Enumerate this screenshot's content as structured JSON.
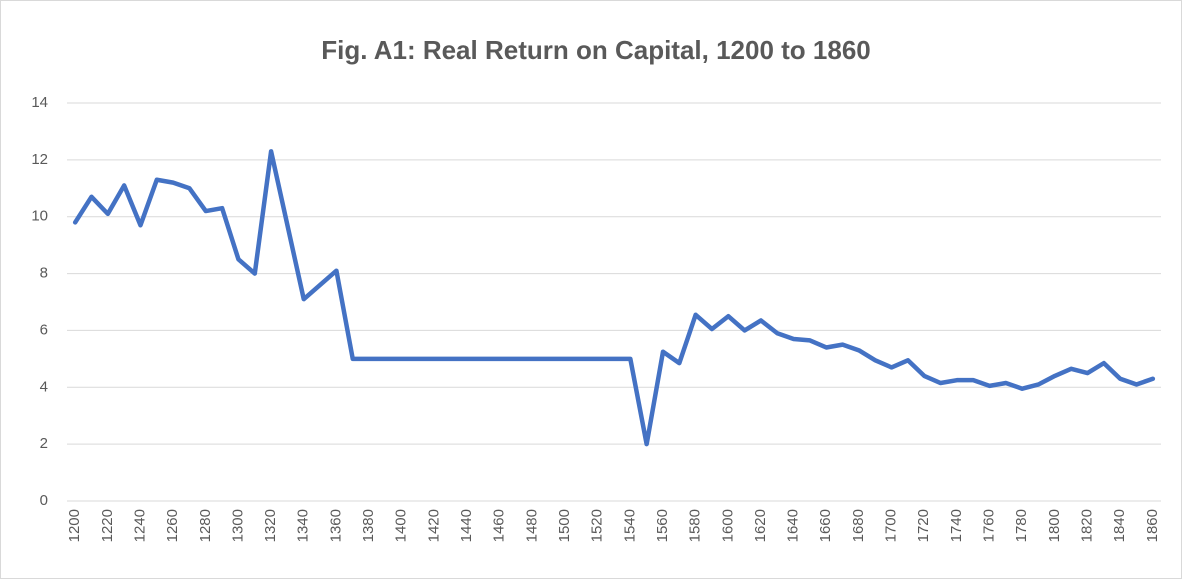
{
  "chart_data": {
    "type": "line",
    "title": "Fig. A1: Real Return on Capital, 1200 to 1860",
    "categories": [
      "1200",
      null,
      "1220",
      null,
      "1240",
      null,
      "1260",
      null,
      "1280",
      null,
      "1300",
      null,
      "1320",
      null,
      "1340",
      null,
      "1360",
      null,
      "1380",
      null,
      "1400",
      null,
      "1420",
      null,
      "1440",
      null,
      "1460",
      null,
      "1480",
      null,
      "1500",
      null,
      "1520",
      null,
      "1540",
      null,
      "1560",
      null,
      "1580",
      null,
      "1600",
      null,
      "1620",
      null,
      "1640",
      null,
      "1660",
      null,
      "1680",
      null,
      "1700",
      null,
      "1720",
      null,
      "1740",
      null,
      "1760",
      null,
      "1780",
      null,
      "1800",
      null,
      "1820",
      null,
      "1840",
      null,
      "1860"
    ],
    "values": [
      9.8,
      10.7,
      10.1,
      11.1,
      9.7,
      11.3,
      11.2,
      11.0,
      10.2,
      10.3,
      8.5,
      8.0,
      12.3,
      9.7,
      7.1,
      7.6,
      8.1,
      5.0,
      5.0,
      5.0,
      5.0,
      5.0,
      5.0,
      5.0,
      5.0,
      5.0,
      5.0,
      5.0,
      5.0,
      5.0,
      5.0,
      5.0,
      5.0,
      5.0,
      5.0,
      2.0,
      5.25,
      4.85,
      6.55,
      6.05,
      6.5,
      6.0,
      6.35,
      5.9,
      5.7,
      5.65,
      5.4,
      5.5,
      5.3,
      4.95,
      4.7,
      4.95,
      4.4,
      4.15,
      4.25,
      4.25,
      4.05,
      4.15,
      3.95,
      4.1,
      4.4,
      4.65,
      4.5,
      4.85,
      4.3,
      4.1,
      4.3
    ],
    "color": "#4472c4",
    "ylim": [
      0,
      14
    ],
    "yticks": [
      0,
      2,
      4,
      6,
      8,
      10,
      12,
      14
    ],
    "grid": true
  }
}
